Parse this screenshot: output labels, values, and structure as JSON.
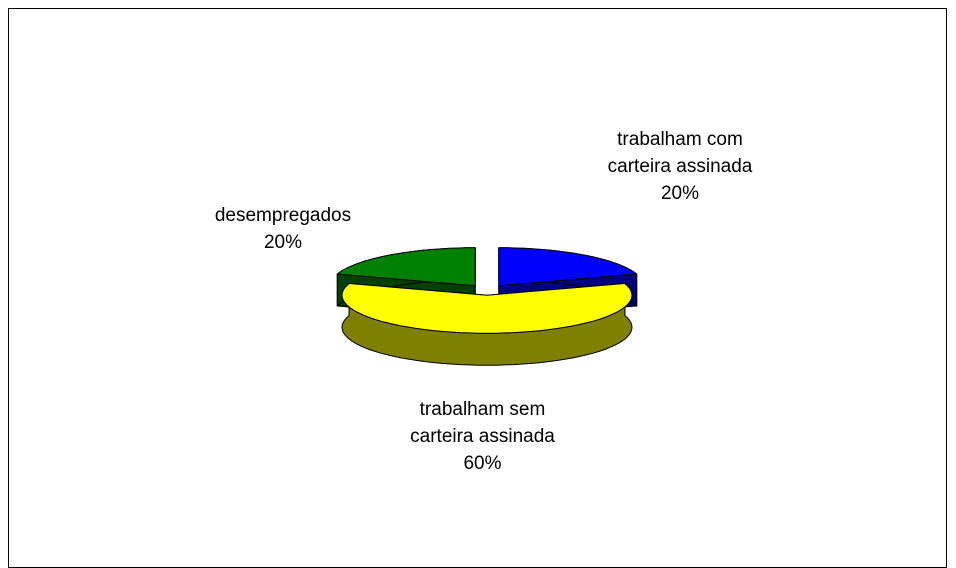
{
  "chart_data": {
    "type": "pie",
    "categories": [
      "trabalham com carteira assinada",
      "trabalham sem carteira assinada",
      "desempregados"
    ],
    "values": [
      20,
      60,
      20
    ],
    "value_labels": [
      "20%",
      "60%",
      "20%"
    ],
    "colors": [
      "#0000ff",
      "#ffff00",
      "#008000"
    ],
    "side_colors": [
      "#000080",
      "#808000",
      "#004000"
    ]
  }
}
